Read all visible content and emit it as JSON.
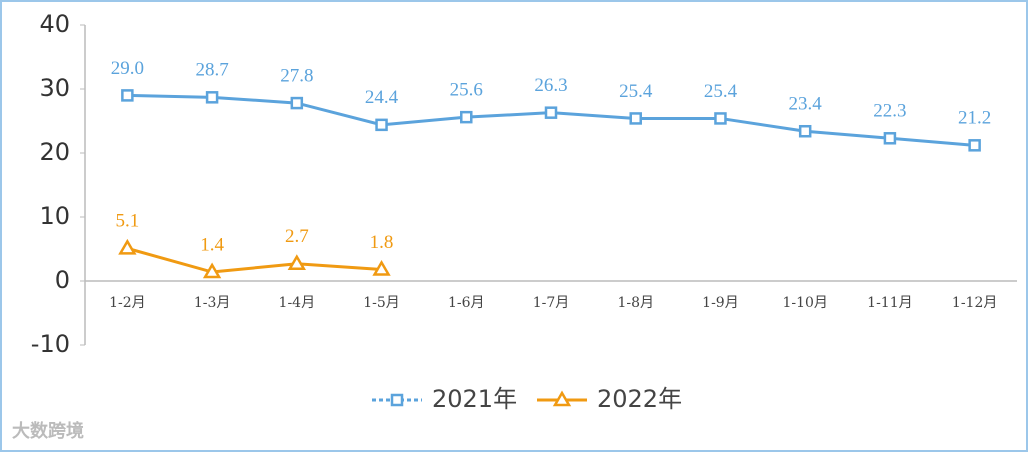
{
  "chart_data": {
    "type": "line",
    "categories": [
      "1-2月",
      "1-3月",
      "1-4月",
      "1-5月",
      "1-6月",
      "1-7月",
      "1-8月",
      "1-9月",
      "1-10月",
      "1-11月",
      "1-12月"
    ],
    "series": [
      {
        "name": "2021年",
        "color": "#5ba3dc",
        "marker": "square",
        "values": [
          29.0,
          28.7,
          27.8,
          24.4,
          25.6,
          26.3,
          25.4,
          25.4,
          23.4,
          22.3,
          21.2
        ],
        "value_labels": [
          "29.0",
          "28.7",
          "27.8",
          "24.4",
          "25.6",
          "26.3",
          "25.4",
          "25.4",
          "23.4",
          "22.3",
          "21.2"
        ]
      },
      {
        "name": "2022年",
        "color": "#f09a12",
        "marker": "triangle",
        "values": [
          5.1,
          1.4,
          2.7,
          1.8,
          null,
          null,
          null,
          null,
          null,
          null,
          null
        ],
        "value_labels": [
          "5.1",
          "1.4",
          "2.7",
          "1.8",
          null,
          null,
          null,
          null,
          null,
          null,
          null
        ]
      }
    ],
    "ylim": [
      -10,
      40
    ],
    "yticks": [
      -10,
      0,
      10,
      20,
      30,
      40
    ],
    "grid": false,
    "legend": "bottom",
    "watermark": "大数跨境"
  }
}
